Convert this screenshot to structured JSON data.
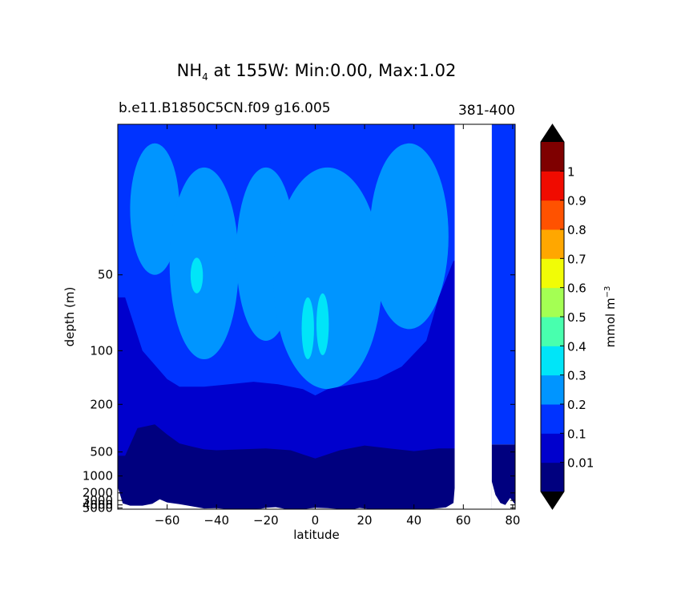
{
  "chart_data": {
    "type": "heatmap",
    "title_prefix": "NH",
    "title_subscript": "4",
    "title_rest": " at 155W: Min:0.00, Max:1.02",
    "subtitle_left": "b.e11.B1850C5CN.f09 g16.005",
    "subtitle_right": "381-400",
    "xlabel": "latitude",
    "ylabel": "depth (m)",
    "xlim": [
      -80,
      81
    ],
    "ylim": [
      5500,
      20
    ],
    "xticks": [
      {
        "v": -60,
        "label": "−60"
      },
      {
        "v": -40,
        "label": "−40"
      },
      {
        "v": -20,
        "label": "−20"
      },
      {
        "v": 0,
        "label": "0"
      },
      {
        "v": 20,
        "label": "20"
      },
      {
        "v": 40,
        "label": "40"
      },
      {
        "v": 60,
        "label": "60"
      },
      {
        "v": 80,
        "label": "80"
      }
    ],
    "yticks": [
      {
        "v": 50,
        "label": "50"
      },
      {
        "v": 100,
        "label": "100"
      },
      {
        "v": 200,
        "label": "200"
      },
      {
        "v": 500,
        "label": "500"
      },
      {
        "v": 1000,
        "label": "1000"
      },
      {
        "v": 2000,
        "label": "2000"
      },
      {
        "v": 3000,
        "label": "3000"
      },
      {
        "v": 4000,
        "label": "4000"
      },
      {
        "v": 5000,
        "label": "5000"
      }
    ],
    "colorbar": {
      "label_main": "mmol m",
      "label_sup": "−3",
      "levels": [
        "0.01",
        "0.1",
        "0.2",
        "0.3",
        "0.4",
        "0.5",
        "0.6",
        "0.7",
        "0.8",
        "0.9",
        "1"
      ],
      "colors": [
        "#00007f",
        "#0000cd",
        "#0033ff",
        "#0095ff",
        "#00e5f8",
        "#48ffae",
        "#a4ff53",
        "#f1fc06",
        "#ffa700",
        "#ff5200",
        "#f00b00",
        "#7f0000"
      ],
      "extend_color": "#000000"
    },
    "contours": {
      "deep": {
        "level": "0.01",
        "top_depth": [
          {
            "lat": -77,
            "depth": 550
          },
          {
            "lat": -72,
            "depth": 300
          },
          {
            "lat": -65,
            "depth": 280
          },
          {
            "lat": -60,
            "depth": 340
          },
          {
            "lat": -55,
            "depth": 410
          },
          {
            "lat": -50,
            "depth": 440
          },
          {
            "lat": -45,
            "depth": 470
          },
          {
            "lat": -40,
            "depth": 480
          },
          {
            "lat": -30,
            "depth": 470
          },
          {
            "lat": -20,
            "depth": 460
          },
          {
            "lat": -10,
            "depth": 480
          },
          {
            "lat": 0,
            "depth": 590
          },
          {
            "lat": 10,
            "depth": 480
          },
          {
            "lat": 20,
            "depth": 430
          },
          {
            "lat": 30,
            "depth": 460
          },
          {
            "lat": 40,
            "depth": 490
          },
          {
            "lat": 50,
            "depth": 460
          },
          {
            "lat": 56,
            "depth": 460
          }
        ]
      },
      "mid": {
        "level": "0.1",
        "top_depth": [
          {
            "lat": -77,
            "depth": 60
          },
          {
            "lat": -70,
            "depth": 100
          },
          {
            "lat": -60,
            "depth": 140
          },
          {
            "lat": -55,
            "depth": 155
          },
          {
            "lat": -45,
            "depth": 155
          },
          {
            "lat": -35,
            "depth": 150
          },
          {
            "lat": -25,
            "depth": 145
          },
          {
            "lat": -15,
            "depth": 150
          },
          {
            "lat": -5,
            "depth": 160
          },
          {
            "lat": 0,
            "depth": 175
          },
          {
            "lat": 5,
            "depth": 160
          },
          {
            "lat": 15,
            "depth": 150
          },
          {
            "lat": 25,
            "depth": 140
          },
          {
            "lat": 35,
            "depth": 120
          },
          {
            "lat": 45,
            "depth": 90
          },
          {
            "lat": 50,
            "depth": 60
          },
          {
            "lat": 56,
            "depth": 45
          }
        ]
      },
      "seafloor": [
        {
          "lat": -80.5,
          "depth": 1300
        },
        {
          "lat": -78,
          "depth": 3600
        },
        {
          "lat": -75,
          "depth": 4200
        },
        {
          "lat": -70,
          "depth": 4200
        },
        {
          "lat": -66,
          "depth": 3700
        },
        {
          "lat": -63,
          "depth": 2800
        },
        {
          "lat": -60,
          "depth": 3400
        },
        {
          "lat": -55,
          "depth": 3800
        },
        {
          "lat": -50,
          "depth": 4400
        },
        {
          "lat": -45,
          "depth": 5200
        },
        {
          "lat": -40,
          "depth": 5100
        },
        {
          "lat": -35,
          "depth": 5500
        },
        {
          "lat": -28,
          "depth": 5400
        },
        {
          "lat": -22,
          "depth": 5300
        },
        {
          "lat": -20,
          "depth": 4900
        },
        {
          "lat": -16,
          "depth": 4700
        },
        {
          "lat": -12,
          "depth": 5400
        },
        {
          "lat": -5,
          "depth": 5500
        },
        {
          "lat": 0,
          "depth": 4900
        },
        {
          "lat": 5,
          "depth": 5100
        },
        {
          "lat": 10,
          "depth": 5400
        },
        {
          "lat": 15,
          "depth": 5500
        },
        {
          "lat": 18,
          "depth": 5000
        },
        {
          "lat": 22,
          "depth": 5400
        },
        {
          "lat": 25,
          "depth": 5500
        },
        {
          "lat": 40,
          "depth": 5500
        },
        {
          "lat": 48,
          "depth": 5300
        },
        {
          "lat": 53,
          "depth": 4800
        },
        {
          "lat": 56,
          "depth": 3500
        },
        {
          "lat": 56.5,
          "depth": 1600
        }
      ],
      "land_gap": [
        56.5,
        71.5
      ],
      "east": {
        "top_depth_deep": 420,
        "seafloor": [
          {
            "lat": 71.5,
            "depth": 1200
          },
          {
            "lat": 73,
            "depth": 2200
          },
          {
            "lat": 75,
            "depth": 3500
          },
          {
            "lat": 77,
            "depth": 4000
          },
          {
            "lat": 79,
            "depth": 2600
          },
          {
            "lat": 81,
            "depth": 3900
          }
        ]
      },
      "patches": [
        {
          "level": "0.2",
          "lat": -65,
          "depth": 32,
          "rx": 10,
          "rdepth": [
            22,
            50
          ]
        },
        {
          "level": "0.2",
          "lat": -45,
          "depth": 55,
          "rx": 14,
          "rdepth": [
            25,
            110
          ]
        },
        {
          "level": "0.2",
          "lat": -20,
          "depth": 45,
          "rx": 12,
          "rdepth": [
            25,
            90
          ]
        },
        {
          "level": "0.2",
          "lat": 5,
          "depth": 70,
          "rx": 22,
          "rdepth": [
            25,
            160
          ]
        },
        {
          "level": "0.2",
          "lat": 38,
          "depth": 40,
          "rx": 16,
          "rdepth": [
            22,
            80
          ]
        },
        {
          "level": "0.3",
          "lat": -48,
          "depth": 50,
          "rx": 2.5,
          "rdepth": [
            44,
            58
          ]
        },
        {
          "level": "0.3",
          "lat": -3,
          "depth": 80,
          "rx": 2.5,
          "rdepth": [
            60,
            110
          ]
        },
        {
          "level": "0.3",
          "lat": 3,
          "depth": 75,
          "rx": 2.5,
          "rdepth": [
            58,
            105
          ]
        }
      ]
    }
  }
}
